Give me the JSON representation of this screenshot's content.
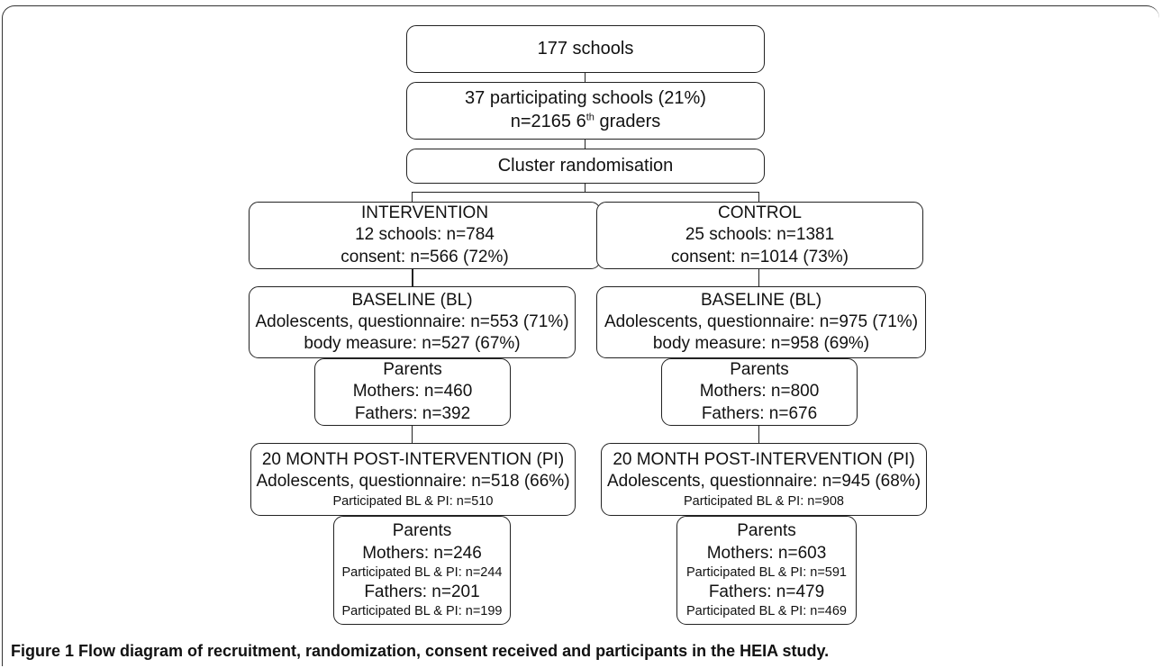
{
  "nodes": {
    "schools": [
      "177 schools"
    ],
    "participating": [
      "37 participating schools (21%)",
      "n=2165 6",
      "th",
      " graders"
    ],
    "randomisation": [
      "Cluster randomisation"
    ],
    "int_group": [
      "INTERVENTION",
      "12 schools: n=784",
      "consent: n=566 (72%)"
    ],
    "ctl_group": [
      "CONTROL",
      "25 schools: n=1381",
      "consent: n=1014 (73%)"
    ],
    "int_baseline": [
      "BASELINE (BL)",
      "Adolescents, questionnaire: n=553 (71%)",
      "body measure: n=527 (67%)"
    ],
    "ctl_baseline": [
      "BASELINE (BL)",
      "Adolescents, questionnaire: n=975 (71%)",
      "body measure: n=958 (69%)"
    ],
    "int_parents_bl": [
      "Parents",
      "Mothers: n=460",
      "Fathers: n=392"
    ],
    "ctl_parents_bl": [
      "Parents",
      "Mothers: n=800",
      "Fathers: n=676"
    ],
    "int_post": [
      "20 MONTH POST-INTERVENTION (PI)",
      "Adolescents, questionnaire: n=518 (66%)",
      "Participated BL & PI: n=510"
    ],
    "ctl_post": [
      "20 MONTH POST-INTERVENTION (PI)",
      "Adolescents, questionnaire: n=945 (68%)",
      "Participated BL & PI: n=908"
    ],
    "int_parents_pi": [
      "Parents",
      "Mothers: n=246",
      "Participated BL & PI: n=244",
      "Fathers: n=201",
      "Participated BL & PI: n=199"
    ],
    "ctl_parents_pi": [
      "Parents",
      "Mothers: n=603",
      "Participated BL & PI: n=591",
      "Fathers: n=479",
      "Participated BL & PI: n=469"
    ]
  },
  "caption": "Figure 1 Flow diagram of recruitment, randomization, consent received and participants in the HEIA study."
}
